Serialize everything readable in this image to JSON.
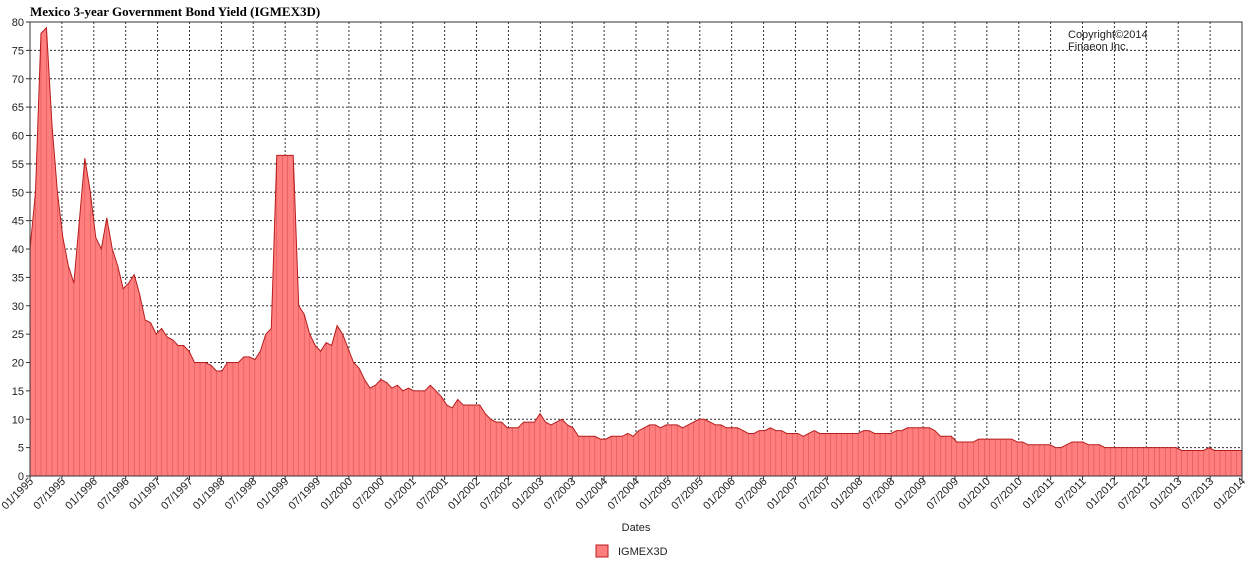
{
  "chart_data": {
    "type": "area",
    "title": "Mexico 3-year Government Bond Yield (IGMEX3D)",
    "xlabel": "Dates",
    "ylabel": "",
    "annotation": [
      "Copyright©2014",
      "Finaeon Inc."
    ],
    "ylim": [
      0,
      80
    ],
    "y_ticks": [
      0,
      5,
      10,
      15,
      20,
      25,
      30,
      35,
      40,
      45,
      50,
      55,
      60,
      65,
      70,
      75,
      80
    ],
    "x_ticks": [
      "01/1995",
      "07/1995",
      "01/1996",
      "07/1996",
      "01/1997",
      "07/1997",
      "01/1998",
      "07/1998",
      "01/1999",
      "07/1999",
      "01/2000",
      "07/2000",
      "01/2001",
      "07/2001",
      "01/2002",
      "07/2002",
      "01/2003",
      "07/2003",
      "01/2004",
      "07/2004",
      "01/2005",
      "07/2005",
      "01/2006",
      "07/2006",
      "01/2007",
      "07/2007",
      "01/2008",
      "07/2008",
      "01/2009",
      "07/2009",
      "01/2010",
      "07/2010",
      "01/2011",
      "07/2011",
      "01/2012",
      "07/2012",
      "01/2013",
      "07/2013",
      "01/2014"
    ],
    "grid": true,
    "legend_position": "bottom-center",
    "series": [
      {
        "name": "IGMEX3D",
        "color": "#ff7f7f",
        "line_color": "#b81c1c",
        "x_start": "01/1995",
        "x_step": "1 month",
        "values": [
          40,
          50,
          78,
          79,
          62,
          50,
          42,
          37,
          34,
          45,
          56,
          50,
          42,
          40,
          45.5,
          40,
          37,
          33,
          34,
          35.5,
          32,
          27.5,
          27,
          25,
          26,
          24.5,
          24,
          23,
          23,
          22,
          20,
          20,
          20,
          19.5,
          18.5,
          18.5,
          20,
          20,
          20,
          21,
          21,
          20.5,
          22,
          25,
          26,
          56.5,
          56.5,
          56.5,
          56.5,
          30,
          28.5,
          25,
          23,
          22,
          23.5,
          23,
          26.5,
          25,
          22.5,
          20,
          19,
          17,
          15.5,
          16,
          17,
          16.5,
          15.5,
          16,
          15,
          15.5,
          15,
          15,
          15,
          16,
          15,
          14,
          12.5,
          12,
          13.5,
          12.5,
          12.5,
          12.5,
          12.5,
          11,
          10,
          9.5,
          9.5,
          8.5,
          8.5,
          8.5,
          9.5,
          9.5,
          9.5,
          11,
          9.5,
          9,
          9.5,
          10,
          9,
          8.5,
          7,
          7,
          7,
          7,
          6.5,
          6.5,
          7,
          7,
          7,
          7.5,
          7,
          8,
          8.5,
          9,
          9,
          8.5,
          9,
          9,
          9,
          8.5,
          9,
          9.5,
          10,
          10,
          9.5,
          9,
          9,
          8.5,
          8.5,
          8.5,
          8,
          7.5,
          7.5,
          8,
          8,
          8.5,
          8,
          8,
          7.5,
          7.5,
          7.5,
          7,
          7.5,
          8,
          7.5,
          7.5,
          7.5,
          7.5,
          7.5,
          7.5,
          7.5,
          7.5,
          8,
          8,
          7.5,
          7.5,
          7.5,
          7.5,
          8,
          8,
          8.5,
          8.5,
          8.5,
          8.5,
          8.5,
          8,
          7,
          7,
          7,
          6,
          6,
          6,
          6,
          6.5,
          6.5,
          6.5,
          6.5,
          6.5,
          6.5,
          6.5,
          6,
          6,
          5.5,
          5.5,
          5.5,
          5.5,
          5.5,
          5,
          5,
          5.5,
          6,
          6,
          6,
          5.5,
          5.5,
          5.5,
          5,
          5,
          5,
          5,
          5,
          5,
          5,
          5,
          5,
          5,
          5,
          5,
          5,
          5,
          4.5,
          4.5,
          4.5,
          4.5,
          4.5,
          5,
          4.5,
          4.5,
          4.5,
          4.5,
          4.5,
          4.5
        ]
      }
    ]
  }
}
